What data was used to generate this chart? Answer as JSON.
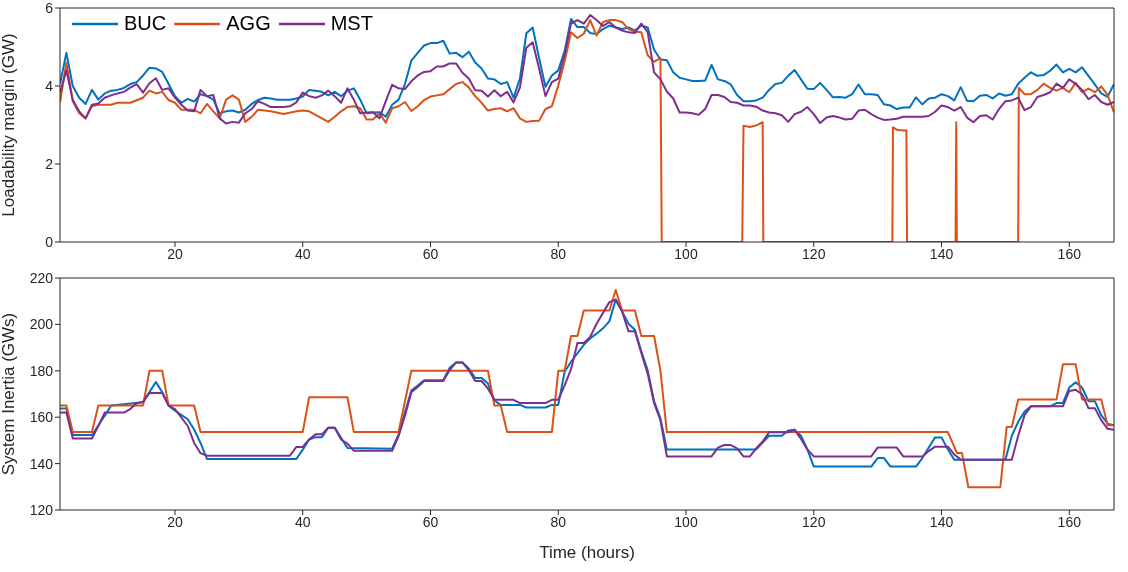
{
  "chart_data": [
    {
      "type": "line",
      "ylabel": "Loadability margin (GW)",
      "xlim": [
        2,
        167
      ],
      "xticks": [
        20,
        40,
        60,
        80,
        100,
        120,
        140,
        160
      ],
      "ylim": [
        0,
        6
      ],
      "yticks": [
        0,
        2,
        4,
        6
      ],
      "legend": "top left",
      "marker": "none",
      "x": [
        2,
        3,
        4,
        5,
        6,
        7,
        8,
        9,
        10,
        11,
        12,
        13,
        14,
        15,
        16,
        17,
        18,
        19,
        20,
        21,
        22,
        23,
        24,
        25,
        26,
        27,
        28,
        29,
        30,
        31,
        32,
        33,
        34,
        35,
        36,
        37,
        38,
        39,
        40,
        41,
        42,
        43,
        44,
        45,
        46,
        47,
        48,
        49,
        50,
        51,
        52,
        53,
        54,
        55,
        56,
        57,
        58,
        59,
        60,
        61,
        62,
        63,
        64,
        65,
        66,
        67,
        68,
        69,
        70,
        71,
        72,
        73,
        74,
        75,
        76,
        77,
        78,
        79,
        80,
        81,
        82,
        83,
        84,
        85,
        86,
        87,
        88,
        89,
        90,
        91,
        92,
        93,
        94,
        95,
        96,
        97,
        98,
        99,
        100,
        101,
        102,
        103,
        104,
        105,
        106,
        107,
        108,
        109,
        110,
        111,
        112,
        113,
        114,
        115,
        116,
        117,
        118,
        119,
        120,
        121,
        122,
        123,
        124,
        125,
        126,
        127,
        128,
        129,
        130,
        131,
        132,
        133,
        134,
        135,
        136,
        137,
        138,
        139,
        140,
        141,
        142,
        143,
        144,
        145,
        146,
        147,
        148,
        149,
        150,
        151,
        152,
        153,
        154,
        155,
        156,
        157,
        158,
        159,
        160,
        161,
        162,
        163,
        164,
        165,
        166,
        167
      ],
      "series": [
        {
          "name": "BUC",
          "color": "#0072bd",
          "values": [
            4.05,
            4.85,
            4.0,
            3.7,
            3.54,
            3.9,
            3.65,
            3.81,
            3.88,
            3.9,
            3.95,
            4.05,
            4.1,
            4.27,
            4.47,
            4.45,
            4.36,
            4.05,
            3.74,
            3.57,
            3.67,
            3.6,
            3.79,
            3.74,
            3.65,
            3.3,
            3.35,
            3.37,
            3.32,
            3.39,
            3.54,
            3.64,
            3.7,
            3.68,
            3.65,
            3.65,
            3.65,
            3.68,
            3.73,
            3.9,
            3.88,
            3.85,
            3.76,
            3.85,
            3.74,
            3.88,
            3.94,
            3.65,
            3.3,
            3.32,
            3.33,
            3.21,
            3.52,
            3.65,
            4.05,
            4.65,
            4.85,
            5.04,
            5.1,
            5.1,
            5.16,
            4.83,
            4.85,
            4.74,
            4.88,
            4.6,
            4.45,
            4.19,
            4.17,
            4.05,
            4.1,
            3.7,
            4.19,
            5.35,
            5.5,
            4.72,
            3.98,
            4.27,
            4.4,
            4.9,
            5.72,
            5.51,
            5.51,
            5.36,
            5.33,
            5.46,
            5.55,
            5.5,
            5.46,
            5.5,
            5.42,
            5.55,
            5.5,
            4.93,
            4.68,
            4.66,
            4.35,
            4.21,
            4.17,
            4.13,
            4.13,
            4.14,
            4.54,
            4.17,
            4.13,
            4.04,
            3.77,
            3.61,
            3.61,
            3.63,
            3.7,
            3.9,
            4.05,
            4.08,
            4.26,
            4.41,
            4.17,
            3.93,
            3.92,
            4.08,
            3.9,
            3.71,
            3.72,
            3.7,
            3.79,
            4.04,
            3.79,
            3.79,
            3.77,
            3.53,
            3.5,
            3.41,
            3.45,
            3.45,
            3.71,
            3.53,
            3.68,
            3.7,
            3.79,
            3.74,
            3.63,
            3.97,
            3.62,
            3.61,
            3.75,
            3.77,
            3.68,
            3.81,
            3.75,
            3.79,
            4.06,
            4.21,
            4.35,
            4.26,
            4.28,
            4.39,
            4.55,
            4.35,
            4.44,
            4.35,
            4.48,
            4.26,
            4.04,
            3.81,
            3.72,
            4.05
          ]
        },
        {
          "name": "AGG",
          "color": "#d95319",
          "x": [
            2,
            3,
            4,
            5,
            6,
            7,
            8,
            10,
            11,
            13,
            15,
            16,
            17,
            18,
            19,
            20,
            21,
            23,
            24,
            25,
            26,
            27,
            28,
            29,
            30,
            31,
            32,
            33,
            35,
            37,
            39,
            40,
            41,
            42,
            44,
            45,
            46,
            47,
            48,
            49,
            50,
            51,
            52,
            53,
            54,
            55,
            56,
            57,
            58,
            59,
            60,
            61,
            62,
            63,
            64,
            65,
            66,
            67,
            68,
            69,
            70,
            71,
            72,
            73,
            74,
            75,
            76,
            77,
            78,
            79,
            80,
            81,
            82,
            83,
            84,
            85,
            86,
            87,
            88,
            89,
            90,
            91,
            92,
            93,
            94,
            95,
            96,
            96.2,
            108.8,
            109,
            110,
            111,
            112,
            112.1,
            132.3,
            132.4,
            133,
            134,
            134.5,
            134.6,
            142.2,
            142.3,
            142.4,
            152,
            152.1,
            153,
            154,
            155,
            156,
            157,
            158,
            159,
            160,
            161,
            162,
            163,
            164,
            165,
            166,
            167
          ],
          "values": [
            3.58,
            4.6,
            3.61,
            3.3,
            3.17,
            3.48,
            3.52,
            3.52,
            3.57,
            3.57,
            3.7,
            3.88,
            3.81,
            3.85,
            3.64,
            3.57,
            3.39,
            3.39,
            3.3,
            3.54,
            3.35,
            3.17,
            3.65,
            3.76,
            3.65,
            3.08,
            3.21,
            3.39,
            3.35,
            3.28,
            3.35,
            3.37,
            3.35,
            3.26,
            3.08,
            3.21,
            3.35,
            3.46,
            3.48,
            3.43,
            3.14,
            3.14,
            3.3,
            3.06,
            3.43,
            3.48,
            3.59,
            3.36,
            3.48,
            3.64,
            3.73,
            3.76,
            3.79,
            3.92,
            4.05,
            4.1,
            3.96,
            3.74,
            3.57,
            3.37,
            3.41,
            3.43,
            3.35,
            3.43,
            3.17,
            3.08,
            3.1,
            3.11,
            3.41,
            3.48,
            4.01,
            4.63,
            5.38,
            5.23,
            5.34,
            5.69,
            5.29,
            5.64,
            5.69,
            5.69,
            5.64,
            5.46,
            5.39,
            5.38,
            4.79,
            4.62,
            4.72,
            0,
            0,
            2.98,
            2.95,
            2.99,
            3.07,
            0,
            0,
            2.94,
            2.88,
            2.86,
            2.86,
            0,
            0,
            3.07,
            0,
            0,
            3.95,
            3.79,
            3.79,
            3.9,
            4.06,
            3.95,
            3.88,
            3.95,
            3.84,
            4.08,
            3.84,
            3.93,
            3.84,
            3.99,
            3.77,
            3.32
          ]
        },
        {
          "name": "MST",
          "color": "#7e2f8e",
          "values": [
            3.83,
            4.4,
            3.64,
            3.35,
            3.17,
            3.52,
            3.55,
            3.7,
            3.76,
            3.81,
            3.85,
            3.96,
            4.05,
            3.83,
            4.07,
            4.2,
            3.9,
            3.94,
            3.7,
            3.52,
            3.37,
            3.35,
            3.9,
            3.74,
            3.77,
            3.17,
            3.04,
            3.08,
            3.06,
            3.3,
            3.41,
            3.61,
            3.54,
            3.46,
            3.46,
            3.46,
            3.48,
            3.58,
            3.83,
            3.74,
            3.7,
            3.76,
            3.88,
            3.74,
            3.57,
            3.94,
            3.65,
            3.3,
            3.32,
            3.33,
            3.17,
            3.61,
            4.03,
            3.94,
            3.92,
            4.12,
            4.27,
            4.36,
            4.38,
            4.5,
            4.5,
            4.58,
            4.58,
            4.34,
            4.19,
            3.89,
            3.88,
            3.73,
            3.89,
            3.74,
            3.85,
            3.58,
            3.96,
            4.98,
            5.12,
            4.45,
            3.74,
            4.1,
            4.19,
            4.81,
            5.6,
            5.69,
            5.6,
            5.82,
            5.69,
            5.54,
            5.64,
            5.5,
            5.42,
            5.38,
            5.36,
            5.6,
            5.38,
            4.35,
            4.17,
            3.86,
            3.68,
            3.32,
            3.32,
            3.3,
            3.26,
            3.41,
            3.77,
            3.77,
            3.72,
            3.59,
            3.57,
            3.5,
            3.5,
            3.47,
            3.37,
            3.32,
            3.3,
            3.25,
            3.08,
            3.28,
            3.34,
            3.46,
            3.28,
            3.05,
            3.19,
            3.23,
            3.19,
            3.14,
            3.16,
            3.37,
            3.39,
            3.28,
            3.19,
            3.13,
            3.14,
            3.16,
            3.21,
            3.21,
            3.21,
            3.21,
            3.23,
            3.34,
            3.5,
            3.46,
            3.37,
            3.46,
            3.19,
            3.07,
            3.23,
            3.25,
            3.14,
            3.41,
            3.61,
            3.63,
            3.7,
            3.38,
            3.46,
            3.72,
            3.77,
            3.84,
            4.06,
            3.95,
            4.17,
            4.05,
            3.9,
            3.66,
            3.77,
            3.59,
            3.52,
            3.59
          ]
        }
      ]
    },
    {
      "type": "line",
      "xlabel": "Time (hours)",
      "ylabel": "System Inertia (GWs)",
      "xlim": [
        2,
        167
      ],
      "xticks": [
        20,
        40,
        60,
        80,
        100,
        120,
        140,
        160
      ],
      "ylim": [
        120,
        220
      ],
      "yticks": [
        120,
        140,
        160,
        180,
        200,
        220
      ],
      "marker": "none",
      "series": [
        {
          "color": "#0072bd",
          "x": [
            2,
            3,
            4,
            7,
            9,
            10,
            15,
            16,
            17,
            18,
            19,
            20,
            22,
            23,
            24,
            25,
            39,
            40,
            41,
            42,
            43,
            44,
            45,
            46,
            47,
            54,
            55,
            56,
            57,
            58,
            59,
            62,
            63,
            64,
            65,
            66,
            67,
            68,
            69,
            70,
            71,
            74,
            75,
            78,
            79,
            80,
            81,
            82,
            84,
            85,
            86,
            87,
            88,
            89,
            90,
            91,
            92,
            93,
            94,
            95,
            96,
            97,
            111,
            112,
            113,
            115,
            116,
            117,
            118,
            119,
            120,
            129,
            130,
            131,
            132,
            136,
            137,
            138,
            139,
            140,
            141,
            142,
            150,
            151,
            152,
            153,
            154,
            157,
            158,
            159,
            160,
            161,
            162,
            163,
            164,
            165,
            166,
            167
          ],
          "values": [
            163.8,
            163.8,
            152.3,
            152.3,
            160.6,
            165,
            166.4,
            170.8,
            175.2,
            170.8,
            165,
            162.8,
            159.1,
            154.7,
            148.9,
            142,
            142,
            146,
            150.4,
            151.4,
            151.4,
            155.5,
            155.5,
            151.1,
            146.7,
            146.4,
            152.6,
            162,
            171.5,
            173.7,
            175.9,
            175.9,
            181.3,
            183.6,
            183.6,
            181,
            176.9,
            176.9,
            174.5,
            167.2,
            165.3,
            165.3,
            164.2,
            164.2,
            165.3,
            165.3,
            179.6,
            183.9,
            191.2,
            194,
            196,
            198.3,
            201.3,
            210.7,
            205.5,
            200.3,
            197.7,
            188.4,
            180.2,
            166.9,
            159.5,
            146.1,
            146.1,
            149.1,
            152,
            152,
            154.3,
            154.6,
            152,
            146.1,
            138.7,
            138.7,
            142.4,
            142.4,
            138.7,
            138.7,
            142.4,
            146.9,
            151.3,
            151.3,
            146.1,
            141.7,
            141.7,
            152,
            158,
            162.4,
            164.7,
            164.7,
            166.1,
            166.1,
            172.8,
            175,
            172.8,
            166.9,
            166.9,
            160.9,
            157.2,
            156.5
          ]
        },
        {
          "color": "#d95319",
          "x": [
            2,
            3,
            4,
            7,
            8,
            15,
            16,
            18,
            19,
            23,
            24,
            40,
            41,
            47,
            48,
            55,
            57,
            69,
            70,
            71,
            72,
            79,
            80,
            81,
            82,
            83,
            84,
            88,
            89,
            90,
            92,
            93,
            95,
            96,
            97,
            141,
            142.4,
            143.2,
            144.2,
            149.2,
            150.2,
            151,
            152,
            158,
            159,
            161,
            162,
            165,
            166,
            167
          ],
          "values": [
            165,
            165,
            153.6,
            153.6,
            165,
            165,
            180,
            180,
            165,
            165,
            153.6,
            153.6,
            168.6,
            168.6,
            153.6,
            153.6,
            180,
            180,
            165,
            165,
            153.6,
            153.6,
            180,
            180,
            195,
            195,
            206,
            206,
            214.8,
            206,
            206,
            195,
            195,
            180,
            153.6,
            153.6,
            144.6,
            144.6,
            129.8,
            129.8,
            155.8,
            155.8,
            167.6,
            167.6,
            182.8,
            182.8,
            167.6,
            167.6,
            156.5,
            156.5
          ]
        },
        {
          "color": "#7e2f8e",
          "x": [
            2,
            3,
            4,
            7,
            8,
            9,
            12,
            13,
            14,
            15,
            16,
            18,
            19,
            20,
            22,
            23,
            24,
            25,
            38,
            39,
            40,
            41,
            42,
            43,
            44,
            45,
            46,
            47,
            48,
            54,
            55,
            56,
            57,
            58,
            59,
            62,
            63,
            64,
            65,
            66,
            67,
            68,
            69,
            70,
            73,
            74,
            78,
            79,
            80,
            81,
            82,
            83,
            84,
            85,
            86,
            88,
            89,
            90,
            91,
            92,
            93,
            94,
            95,
            96,
            97,
            104,
            105,
            106,
            107,
            108,
            109,
            110,
            111,
            112,
            113,
            116,
            117,
            118,
            119,
            120,
            129,
            130,
            133,
            134,
            137,
            138,
            139,
            141,
            142,
            143,
            151,
            152,
            153,
            154,
            159,
            160,
            161,
            162,
            163,
            164,
            165,
            166,
            167
          ],
          "values": [
            162,
            162,
            150.8,
            150.8,
            156.2,
            162,
            162,
            163.5,
            166,
            166.7,
            170.4,
            170.4,
            165,
            163.5,
            156.2,
            148.9,
            144.5,
            143.4,
            143.4,
            147.2,
            147.2,
            150.4,
            152.6,
            152.6,
            155.5,
            155.5,
            150.4,
            148.6,
            145.5,
            145.5,
            151.8,
            160.6,
            170.8,
            173,
            175.6,
            175.6,
            180.3,
            183.6,
            183.6,
            180.3,
            175.6,
            175.6,
            172.3,
            167.5,
            167.5,
            166.1,
            166.1,
            167.5,
            167.5,
            173.7,
            180.7,
            192,
            192,
            194.6,
            200.3,
            209.6,
            210.7,
            205.5,
            197,
            197,
            187.7,
            178.8,
            166.1,
            158.7,
            143.1,
            143.1,
            146.9,
            148,
            148,
            146.6,
            143.1,
            143.1,
            146.6,
            149.5,
            153.5,
            153.5,
            154.6,
            150.6,
            146.1,
            143.1,
            143.1,
            146.9,
            146.9,
            143.1,
            143.1,
            145.4,
            147.3,
            147.3,
            143.9,
            141.7,
            141.7,
            152,
            160.9,
            164.7,
            164.7,
            171.3,
            171.8,
            169.9,
            163.9,
            163.9,
            158.7,
            155,
            154.6
          ]
        }
      ]
    }
  ]
}
